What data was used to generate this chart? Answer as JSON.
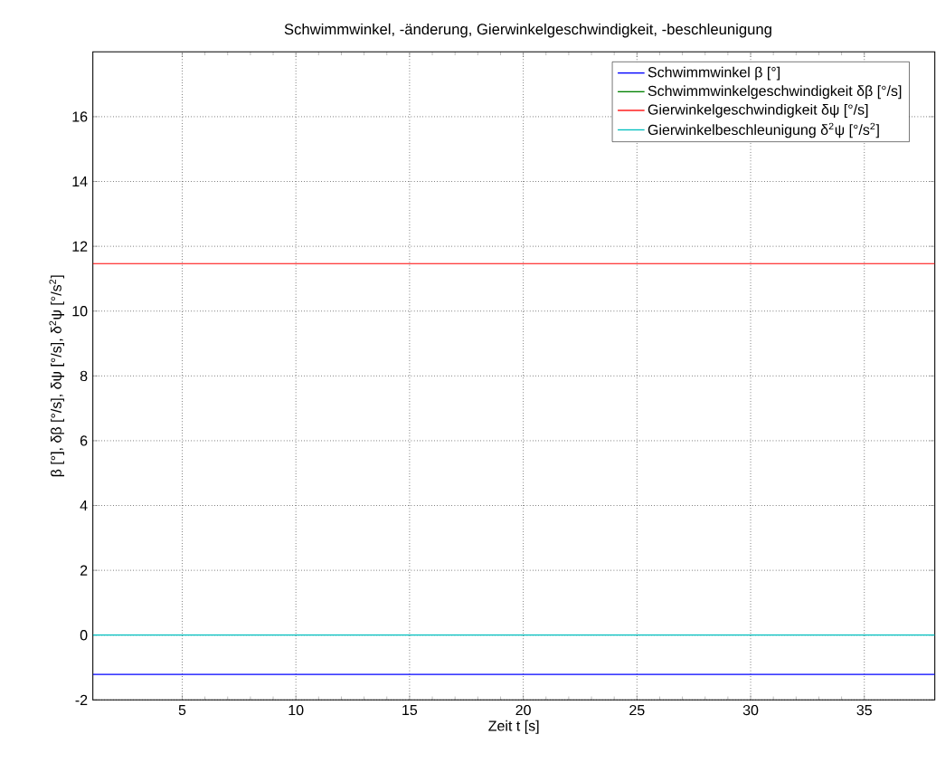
{
  "chart_data": {
    "type": "line",
    "title": "Schwimmwinkel, -änderung, Gierwinkelgeschwindigkeit, -beschleunigung",
    "xlabel": "Zeit t [s]",
    "ylabel": "β [°], δβ [°/s], δψ [°/s], δ$^{2}$ψ [°/s$^{2}$]",
    "x": [
      1.07,
      38.1
    ],
    "series": [
      {
        "name": "Schwimmwinkel β [°]",
        "color": "#0000ff",
        "values": [
          -1.21,
          -1.21
        ]
      },
      {
        "name": "Schwimmwinkelgeschwindigkeit δβ [°/s]",
        "color": "#008000",
        "values": [
          null,
          null
        ]
      },
      {
        "name": "Gierwinkelgeschwindigkeit δψ [°/s]",
        "color": "#ff0000",
        "values": [
          11.47,
          11.47
        ]
      },
      {
        "name": "Gierwinkelbeschleunigung δ$^{2}$ψ [°/s$^{2}$]",
        "color": "#00bfbf",
        "values": [
          0,
          0
        ]
      }
    ],
    "xlim": [
      1.07,
      38.1
    ],
    "ylim": [
      -2,
      18
    ],
    "xticks": [
      5,
      10,
      15,
      20,
      25,
      30,
      35
    ],
    "yticks": [
      -2,
      0,
      2,
      4,
      6,
      8,
      10,
      12,
      14,
      16
    ],
    "grid": true,
    "legend": "top right",
    "line_style": "solid",
    "marker": "none"
  }
}
